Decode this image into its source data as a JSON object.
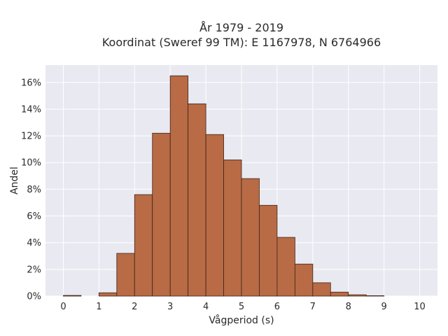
{
  "chart_data": {
    "type": "bar",
    "title": [
      "År 1979 - 2019",
      "Koordinat (Sweref 99 TM): E 1167978, N 6764966"
    ],
    "xlabel": "Vågperiod (s)",
    "ylabel": "Andel",
    "xlim": [
      -0.5,
      10.5
    ],
    "ylim": [
      0,
      0.173
    ],
    "x_ticks": [
      0,
      1,
      2,
      3,
      4,
      5,
      6,
      7,
      8,
      9,
      10
    ],
    "y_ticks": [
      0,
      0.02,
      0.04,
      0.06,
      0.08,
      0.1,
      0.12,
      0.14,
      0.16
    ],
    "y_tick_labels": [
      "0%",
      "2%",
      "4%",
      "6%",
      "8%",
      "10%",
      "12%",
      "14%",
      "16%"
    ],
    "bin_width": 0.5,
    "bins": [
      {
        "x0": 0.0,
        "value": 0.0005
      },
      {
        "x0": 0.5,
        "value": 0.0
      },
      {
        "x0": 1.0,
        "value": 0.0025
      },
      {
        "x0": 1.5,
        "value": 0.032
      },
      {
        "x0": 2.0,
        "value": 0.076
      },
      {
        "x0": 2.5,
        "value": 0.122
      },
      {
        "x0": 3.0,
        "value": 0.165
      },
      {
        "x0": 3.5,
        "value": 0.144
      },
      {
        "x0": 4.0,
        "value": 0.121
      },
      {
        "x0": 4.5,
        "value": 0.102
      },
      {
        "x0": 5.0,
        "value": 0.088
      },
      {
        "x0": 5.5,
        "value": 0.068
      },
      {
        "x0": 6.0,
        "value": 0.044
      },
      {
        "x0": 6.5,
        "value": 0.024
      },
      {
        "x0": 7.0,
        "value": 0.01
      },
      {
        "x0": 7.5,
        "value": 0.003
      },
      {
        "x0": 8.0,
        "value": 0.001
      },
      {
        "x0": 8.5,
        "value": 0.0003
      }
    ],
    "grid": true,
    "colors": {
      "bar_fill": "#b86b45",
      "bar_edge": "#3d2418",
      "plot_bg": "#e9e9f1",
      "grid": "#ffffff"
    }
  }
}
